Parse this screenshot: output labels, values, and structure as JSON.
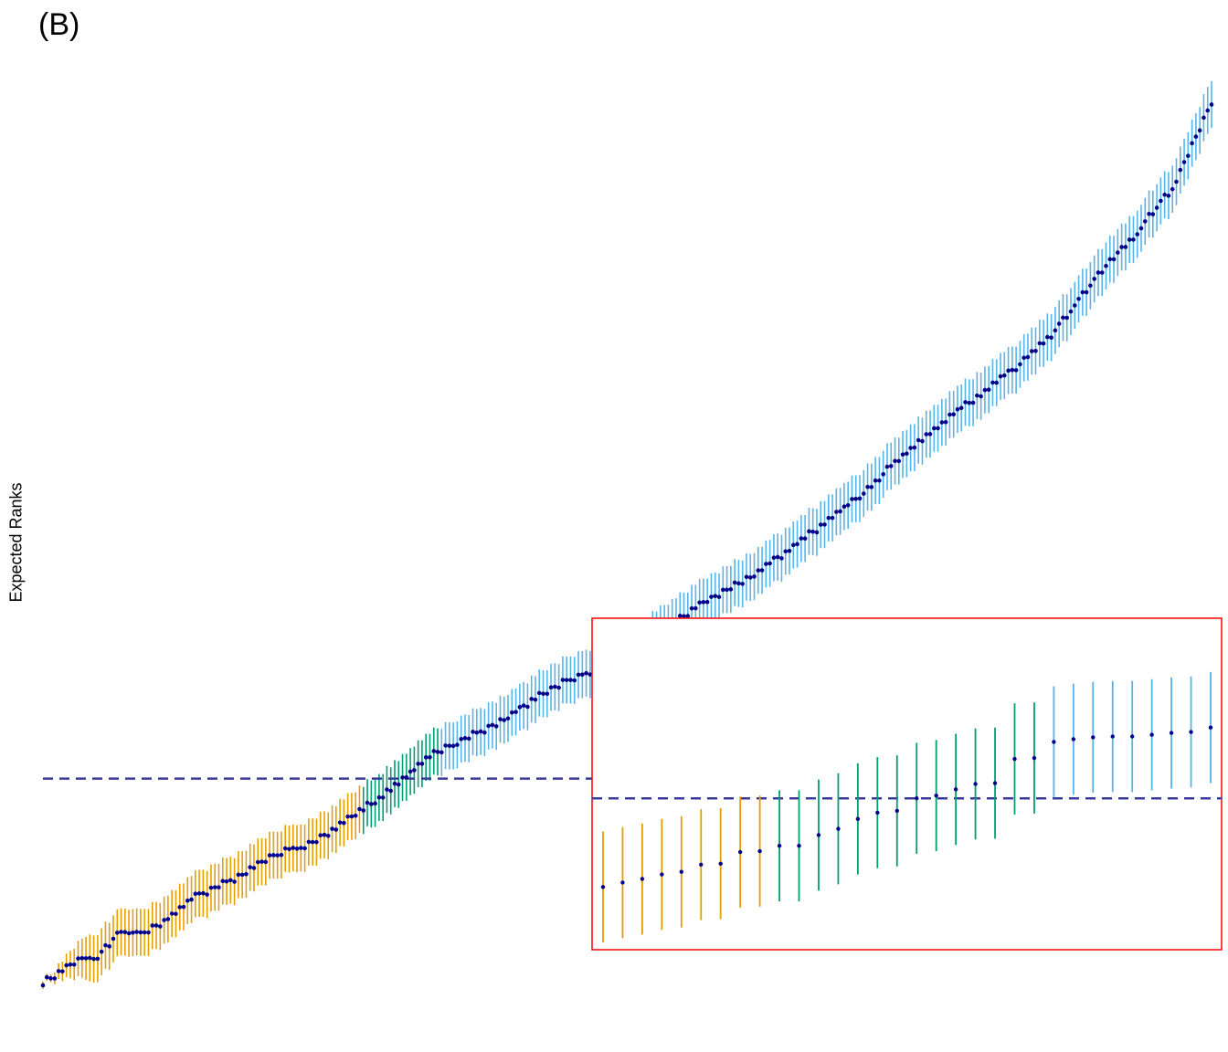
{
  "figure": {
    "panel_label": "(B)",
    "ylabel": "Expected Ranks"
  },
  "chart_data": {
    "type": "scatter",
    "description_of_marks": "ranked point estimates with vertical interval bars",
    "n_units": 300,
    "xlabel": "",
    "ylabel": "Expected Ranks",
    "ylim": [
      0,
      300
    ],
    "grid": false,
    "legend": "none",
    "colors": {
      "point": "#00008b",
      "group_low": "#e69f00",
      "group_mid": "#009e73",
      "group_high": "#56b4e9",
      "reference_line": "#3a3a9a",
      "inset_border": "#ff0000"
    },
    "reference_line_y": 70,
    "groups": [
      {
        "key": "group_low",
        "rank_range": [
          1,
          82
        ]
      },
      {
        "key": "group_mid",
        "rank_range": [
          83,
          102
        ]
      },
      {
        "key": "group_high",
        "rank_range": [
          103,
          300
        ]
      }
    ],
    "main_curve_knots": [
      {
        "rank": 1,
        "expected": 1
      },
      {
        "rank": 6,
        "expected": 4
      },
      {
        "rank": 7,
        "expected": 7
      },
      {
        "rank": 15,
        "expected": 9
      },
      {
        "rank": 20,
        "expected": 17
      },
      {
        "rank": 30,
        "expected": 19
      },
      {
        "rank": 40,
        "expected": 30
      },
      {
        "rank": 50,
        "expected": 36
      },
      {
        "rank": 60,
        "expected": 44
      },
      {
        "rank": 70,
        "expected": 48
      },
      {
        "rank": 80,
        "expected": 57
      },
      {
        "rank": 90,
        "expected": 66
      },
      {
        "rank": 95,
        "expected": 72
      },
      {
        "rank": 100,
        "expected": 78
      },
      {
        "rank": 110,
        "expected": 84
      },
      {
        "rank": 120,
        "expected": 91
      },
      {
        "rank": 130,
        "expected": 100
      },
      {
        "rank": 140,
        "expected": 106
      },
      {
        "rank": 150,
        "expected": 112
      },
      {
        "rank": 160,
        "expected": 121
      },
      {
        "rank": 170,
        "expected": 130
      },
      {
        "rank": 180,
        "expected": 137
      },
      {
        "rank": 190,
        "expected": 146
      },
      {
        "rank": 200,
        "expected": 156
      },
      {
        "rank": 210,
        "expected": 166
      },
      {
        "rank": 220,
        "expected": 179
      },
      {
        "rank": 230,
        "expected": 190
      },
      {
        "rank": 240,
        "expected": 200
      },
      {
        "rank": 250,
        "expected": 210
      },
      {
        "rank": 260,
        "expected": 222
      },
      {
        "rank": 270,
        "expected": 240
      },
      {
        "rank": 280,
        "expected": 254
      },
      {
        "rank": 290,
        "expected": 271
      },
      {
        "rank": 300,
        "expected": 300
      }
    ],
    "main_interval_halfwidth": 8,
    "inset": {
      "description": "zoomed view of ranks around the reference line",
      "points": [
        {
          "group": "group_low",
          "expected": 0.0
        },
        {
          "group": "group_low",
          "expected": 0.5
        },
        {
          "group": "group_low",
          "expected": 0.9
        },
        {
          "group": "group_low",
          "expected": 1.4
        },
        {
          "group": "group_low",
          "expected": 1.7
        },
        {
          "group": "group_low",
          "expected": 2.5
        },
        {
          "group": "group_low",
          "expected": 2.6
        },
        {
          "group": "group_low",
          "expected": 3.9
        },
        {
          "group": "group_low",
          "expected": 4.0
        },
        {
          "group": "group_mid",
          "expected": 4.6
        },
        {
          "group": "group_mid",
          "expected": 4.6
        },
        {
          "group": "group_mid",
          "expected": 5.8
        },
        {
          "group": "group_mid",
          "expected": 6.5
        },
        {
          "group": "group_mid",
          "expected": 7.6
        },
        {
          "group": "group_mid",
          "expected": 8.3
        },
        {
          "group": "group_mid",
          "expected": 8.5
        },
        {
          "group": "group_mid",
          "expected": 9.9
        },
        {
          "group": "group_mid",
          "expected": 10.2
        },
        {
          "group": "group_mid",
          "expected": 10.9
        },
        {
          "group": "group_mid",
          "expected": 11.5
        },
        {
          "group": "group_mid",
          "expected": 11.6
        },
        {
          "group": "group_mid",
          "expected": 14.3
        },
        {
          "group": "group_mid",
          "expected": 14.4
        },
        {
          "group": "group_high",
          "expected": 16.2
        },
        {
          "group": "group_high",
          "expected": 16.5
        },
        {
          "group": "group_high",
          "expected": 16.7
        },
        {
          "group": "group_high",
          "expected": 16.8
        },
        {
          "group": "group_high",
          "expected": 16.8
        },
        {
          "group": "group_high",
          "expected": 17.0
        },
        {
          "group": "group_high",
          "expected": 17.2
        },
        {
          "group": "group_high",
          "expected": 17.3
        },
        {
          "group": "group_high",
          "expected": 17.8
        }
      ],
      "interval_halfwidth": 6.2,
      "reference_line_y": 9.9,
      "ylim": [
        -7,
        30
      ]
    }
  }
}
